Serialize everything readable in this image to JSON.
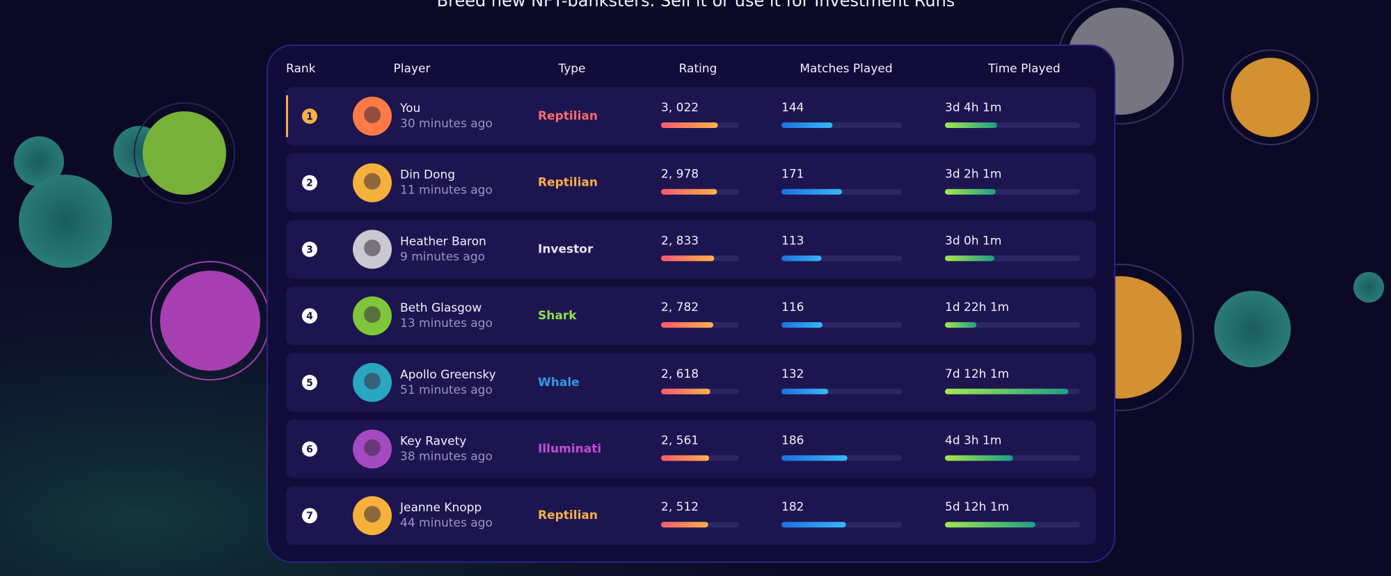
{
  "header": {
    "subtitle": "Breed new NFT-banksters. Sell it or use it for Investment Runs"
  },
  "table": {
    "columns": [
      "Rank",
      "Player",
      "Type",
      "Rating",
      "Matches Played",
      "Time Played"
    ],
    "rows": [
      {
        "rank": 1,
        "name": "You",
        "seen": "30 minutes ago",
        "type": "Reptilian",
        "type_color": "#ff6b6b",
        "rating": "3, 022",
        "matches": 144,
        "time": "3d 4h 1m"
      },
      {
        "rank": 2,
        "name": "Din Dong",
        "seen": "11 minutes ago",
        "type": "Reptilian",
        "type_color": "#f7b048",
        "rating": "2, 978",
        "matches": 171,
        "time": "3d 2h 1m"
      },
      {
        "rank": 3,
        "name": "Heather Baron",
        "seen": "9 minutes ago",
        "type": "Investor",
        "type_color": "#e6e4f0",
        "rating": "2, 833",
        "matches": 113,
        "time": "3d 0h 1m"
      },
      {
        "rank": 4,
        "name": "Beth Glasgow",
        "seen": "13 minutes ago",
        "type": "Shark",
        "type_color": "#8fe04c",
        "rating": "2, 782",
        "matches": 116,
        "time": "1d 22h 1m"
      },
      {
        "rank": 5,
        "name": "Apollo Greensky",
        "seen": "51 minutes ago",
        "type": "Whale",
        "type_color": "#2e9be3",
        "rating": "2, 618",
        "matches": 132,
        "time": "7d 12h 1m"
      },
      {
        "rank": 6,
        "name": "Key Ravety",
        "seen": "38 minutes ago",
        "type": "Illuminati",
        "type_color": "#c44ad9",
        "rating": "2, 561",
        "matches": 186,
        "time": "4d 3h 1m"
      },
      {
        "rank": 7,
        "name": "Jeanne Knopp",
        "seen": "44 minutes ago",
        "type": "Reptilian",
        "type_color": "#f7b048",
        "rating": "2, 512",
        "matches": 182,
        "time": "5d 12h 1m"
      }
    ]
  }
}
